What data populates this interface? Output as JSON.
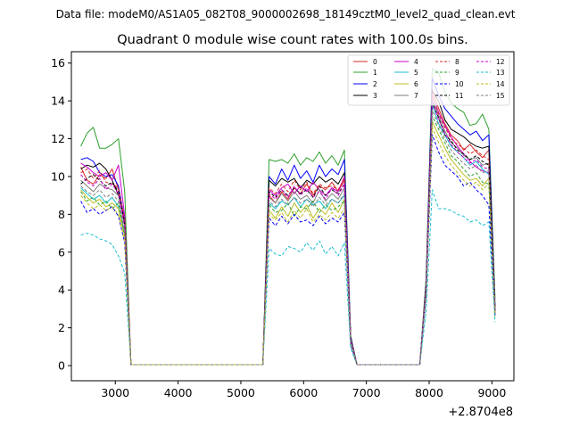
{
  "suptitle": "Data file: modeM0/AS1A05_082T08_9000002698_18149cztM0_level2_quad_clean.evt",
  "chart_data": {
    "type": "line",
    "title": "Quadrant 0 module wise count rates with 100.0s bins.",
    "xlabel": "",
    "ylabel": "",
    "x_offset_label": "+2.8704e8",
    "xlim": [
      2300,
      9350
    ],
    "ylim": [
      -0.8,
      16.6
    ],
    "xticks": [
      3000,
      4000,
      5000,
      6000,
      7000,
      8000,
      9000
    ],
    "xtick_labels": [
      "3000",
      "4000",
      "5000",
      "6000",
      "7000",
      "8000",
      "9000"
    ],
    "yticks": [
      0,
      2,
      4,
      6,
      8,
      10,
      12,
      14,
      16
    ],
    "ytick_labels": [
      "0",
      "2",
      "4",
      "6",
      "8",
      "10",
      "12",
      "14",
      "16"
    ],
    "grid": false,
    "legend_position": "top-right",
    "legend_columns": 4,
    "segments": [
      {
        "x": [
          2450,
          2550,
          2650,
          2750,
          2850,
          2950,
          3050,
          3150,
          3250
        ]
      },
      {
        "x": [
          3250,
          3350,
          3450,
          3550,
          3650,
          3750,
          3850,
          3950,
          4050,
          4150,
          4250,
          4350,
          4450,
          4550,
          4650,
          4750,
          4850,
          4950,
          5050,
          5150,
          5250,
          5350
        ]
      },
      {
        "x": [
          5350,
          5450,
          5550,
          5650,
          5750,
          5850,
          5950,
          6050,
          6150,
          6250,
          6350,
          6450,
          6550,
          6650,
          6750,
          6850
        ]
      },
      {
        "x": [
          6850,
          6950,
          7050,
          7150,
          7250,
          7350,
          7450,
          7550,
          7650,
          7750,
          7850
        ]
      },
      {
        "x": [
          7850,
          7950,
          8050,
          8150,
          8250,
          8350,
          8450,
          8550,
          8650,
          8750,
          8850,
          8950,
          9050
        ]
      }
    ],
    "series": [
      {
        "name": "0",
        "color": "#d62728",
        "dash": false,
        "seg1": [
          10.5,
          9.8,
          9.6,
          10.1,
          9.9,
          10.4,
          9.3,
          7.8,
          0.05
        ],
        "seg3": [
          0.05,
          9.0,
          8.6,
          9.2,
          8.8,
          9.4,
          9.1,
          9.6,
          9.0,
          9.5,
          9.3,
          9.7,
          9.2,
          9.8,
          1.4,
          0.05
        ],
        "seg5": [
          0.05,
          4.2,
          14.6,
          13.6,
          12.8,
          12.2,
          11.9,
          11.4,
          11.7,
          11.3,
          11.0,
          11.4,
          3.0
        ]
      },
      {
        "name": "1",
        "color": "#2ca02c",
        "dash": false,
        "seg1": [
          11.6,
          12.3,
          12.6,
          11.5,
          11.5,
          11.7,
          12.0,
          9.2,
          0.05
        ],
        "seg3": [
          0.05,
          10.9,
          10.8,
          10.9,
          10.7,
          11.2,
          10.6,
          11.0,
          10.8,
          11.3,
          10.7,
          11.1,
          10.6,
          11.4,
          1.6,
          0.05
        ],
        "seg5": [
          0.05,
          4.6,
          15.7,
          15.5,
          14.5,
          13.9,
          13.6,
          13.4,
          12.7,
          12.8,
          13.3,
          12.5,
          3.5
        ]
      },
      {
        "name": "2",
        "color": "#0000ff",
        "dash": false,
        "seg1": [
          10.9,
          11.0,
          10.8,
          10.2,
          10.0,
          10.1,
          9.5,
          7.6,
          0.05
        ],
        "seg3": [
          0.05,
          10.0,
          9.6,
          10.4,
          9.8,
          10.6,
          9.9,
          10.3,
          9.7,
          10.6,
          10.0,
          10.4,
          10.1,
          10.9,
          1.5,
          0.05
        ],
        "seg5": [
          0.05,
          4.3,
          15.2,
          14.3,
          13.6,
          13.2,
          12.8,
          12.5,
          12.2,
          12.4,
          11.9,
          12.2,
          3.1
        ]
      },
      {
        "name": "3",
        "color": "#000000",
        "dash": false,
        "seg1": [
          10.4,
          10.6,
          10.5,
          10.7,
          10.4,
          9.8,
          9.0,
          7.4,
          0.05
        ],
        "seg3": [
          0.05,
          9.8,
          9.5,
          9.9,
          9.7,
          9.9,
          9.4,
          9.8,
          9.6,
          10.0,
          9.7,
          9.9,
          9.6,
          10.2,
          1.4,
          0.05
        ],
        "seg5": [
          0.05,
          4.1,
          14.5,
          14.0,
          13.0,
          12.5,
          12.3,
          12.1,
          11.8,
          11.6,
          11.5,
          11.6,
          3.0
        ]
      },
      {
        "name": "4",
        "color": "#cc00cc",
        "dash": false,
        "seg1": [
          10.7,
          10.5,
          10.2,
          10.0,
          10.2,
          9.8,
          10.6,
          7.9,
          0.05
        ],
        "seg3": [
          0.05,
          9.3,
          9.0,
          9.4,
          9.6,
          9.1,
          9.5,
          9.2,
          9.7,
          9.3,
          9.0,
          9.4,
          9.2,
          10.0,
          1.4,
          0.05
        ],
        "seg5": [
          0.05,
          4.2,
          14.3,
          13.4,
          12.7,
          12.1,
          11.6,
          11.2,
          10.8,
          10.5,
          10.3,
          10.2,
          3.0
        ]
      },
      {
        "name": "5",
        "color": "#17becf",
        "dash": false,
        "seg1": [
          9.4,
          9.1,
          8.8,
          9.0,
          8.6,
          8.9,
          8.4,
          7.0,
          0.05
        ],
        "seg3": [
          0.05,
          8.6,
          8.3,
          8.7,
          8.5,
          8.9,
          8.4,
          8.8,
          8.5,
          8.7,
          8.3,
          8.8,
          8.6,
          9.0,
          1.3,
          0.05
        ],
        "seg5": [
          0.05,
          3.9,
          13.8,
          12.8,
          12.2,
          11.6,
          11.3,
          11.0,
          10.6,
          10.8,
          10.4,
          10.1,
          2.8
        ]
      },
      {
        "name": "6",
        "color": "#bcbd22",
        "dash": false,
        "seg1": [
          9.3,
          8.9,
          8.6,
          8.8,
          8.4,
          8.6,
          8.3,
          6.8,
          0.05
        ],
        "seg3": [
          0.05,
          8.2,
          7.8,
          8.4,
          7.9,
          8.6,
          8.1,
          8.5,
          7.8,
          8.3,
          8.0,
          8.6,
          8.1,
          8.8,
          1.2,
          0.05
        ],
        "seg5": [
          0.05,
          3.8,
          12.9,
          12.2,
          11.5,
          10.9,
          10.5,
          10.1,
          9.8,
          9.9,
          9.5,
          9.9,
          2.7
        ]
      },
      {
        "name": "7",
        "color": "#7f7f7f",
        "dash": false,
        "seg1": [
          9.8,
          9.5,
          9.2,
          9.6,
          9.4,
          9.3,
          9.0,
          7.3,
          0.05
        ],
        "seg3": [
          0.05,
          8.9,
          8.6,
          9.1,
          8.7,
          9.2,
          8.8,
          9.0,
          8.6,
          9.3,
          8.7,
          9.1,
          8.8,
          9.4,
          1.3,
          0.05
        ],
        "seg5": [
          0.05,
          4.0,
          14.1,
          13.2,
          12.4,
          11.8,
          11.5,
          11.1,
          10.9,
          11.0,
          10.6,
          10.7,
          2.9
        ]
      },
      {
        "name": "8",
        "color": "#d62728",
        "dash": true,
        "seg1": [
          10.2,
          10.4,
          9.9,
          10.3,
          9.7,
          9.6,
          9.4,
          7.7,
          0.05
        ],
        "seg3": [
          0.05,
          9.4,
          9.1,
          9.6,
          9.2,
          9.8,
          9.3,
          9.7,
          9.1,
          9.6,
          9.4,
          9.5,
          9.3,
          9.9,
          1.4,
          0.05
        ],
        "seg5": [
          0.05,
          4.2,
          14.4,
          13.3,
          12.6,
          12.0,
          11.7,
          11.5,
          11.2,
          11.4,
          11.1,
          10.9,
          2.9
        ]
      },
      {
        "name": "9",
        "color": "#2ca02c",
        "dash": true,
        "seg1": [
          9.2,
          8.7,
          8.9,
          8.5,
          8.7,
          8.3,
          8.6,
          6.9,
          0.05
        ],
        "seg3": [
          0.05,
          8.5,
          8.1,
          8.2,
          8.6,
          7.9,
          8.4,
          8.3,
          8.7,
          8.1,
          8.5,
          8.2,
          8.4,
          8.7,
          1.2,
          0.05
        ],
        "seg5": [
          0.05,
          3.9,
          13.2,
          12.5,
          11.8,
          11.1,
          10.8,
          10.4,
          10.0,
          10.2,
          9.7,
          9.6,
          2.7
        ]
      },
      {
        "name": "10",
        "color": "#0000ff",
        "dash": true,
        "seg1": [
          8.7,
          8.1,
          8.3,
          8.0,
          8.2,
          8.4,
          7.9,
          6.5,
          0.05
        ],
        "seg3": [
          0.05,
          7.8,
          7.4,
          7.9,
          7.5,
          8.0,
          7.6,
          7.7,
          7.4,
          7.9,
          7.5,
          7.8,
          7.6,
          8.1,
          1.1,
          0.05
        ],
        "seg5": [
          0.05,
          3.6,
          12.2,
          11.3,
          10.6,
          10.3,
          10.0,
          9.5,
          9.7,
          9.3,
          9.0,
          8.5,
          2.6
        ]
      },
      {
        "name": "11",
        "color": "#000000",
        "dash": true,
        "seg1": [
          9.6,
          9.9,
          10.1,
          9.8,
          9.5,
          9.7,
          9.2,
          7.5,
          0.05
        ],
        "seg3": [
          0.05,
          9.2,
          8.9,
          9.3,
          9.0,
          9.4,
          9.1,
          9.3,
          8.9,
          9.5,
          9.0,
          9.3,
          9.1,
          9.6,
          1.3,
          0.05
        ],
        "seg5": [
          0.05,
          4.1,
          13.9,
          13.1,
          12.2,
          11.9,
          11.4,
          11.2,
          10.9,
          11.1,
          10.8,
          10.6,
          2.9
        ]
      },
      {
        "name": "12",
        "color": "#cc00cc",
        "dash": true,
        "seg1": [
          10.1,
          9.7,
          9.5,
          9.9,
          9.3,
          9.6,
          9.1,
          7.4,
          0.05
        ],
        "seg3": [
          0.05,
          9.1,
          8.8,
          9.3,
          8.9,
          9.5,
          9.0,
          9.4,
          8.9,
          9.2,
          8.8,
          9.4,
          9.0,
          9.6,
          1.3,
          0.05
        ],
        "seg5": [
          0.05,
          4.0,
          14.0,
          13.0,
          12.3,
          11.7,
          11.3,
          11.0,
          10.7,
          10.9,
          10.5,
          10.4,
          2.8
        ]
      },
      {
        "name": "13",
        "color": "#17becf",
        "dash": true,
        "seg1": [
          6.9,
          7.0,
          6.9,
          6.7,
          6.6,
          6.4,
          5.8,
          4.9,
          0.05
        ],
        "seg3": [
          0.05,
          6.2,
          5.9,
          5.8,
          6.3,
          6.2,
          6.0,
          6.5,
          6.1,
          6.6,
          5.9,
          6.3,
          5.8,
          6.5,
          0.9,
          0.05
        ],
        "seg5": [
          0.05,
          2.8,
          9.3,
          8.3,
          8.3,
          8.2,
          8.0,
          7.9,
          7.6,
          7.7,
          7.4,
          7.6,
          2.3
        ]
      },
      {
        "name": "14",
        "color": "#bcbd22",
        "dash": true,
        "seg1": [
          9.0,
          8.6,
          8.3,
          8.5,
          8.2,
          8.4,
          8.0,
          6.6,
          0.05
        ],
        "seg3": [
          0.05,
          8.0,
          7.7,
          8.1,
          7.6,
          8.2,
          7.8,
          8.3,
          7.6,
          8.0,
          7.7,
          8.1,
          7.8,
          8.3,
          1.2,
          0.05
        ],
        "seg5": [
          0.05,
          3.7,
          12.6,
          11.8,
          11.1,
          10.6,
          10.2,
          9.8,
          9.5,
          9.7,
          9.3,
          9.6,
          2.6
        ]
      },
      {
        "name": "15",
        "color": "#7f7f7f",
        "dash": true,
        "seg1": [
          9.5,
          9.2,
          9.0,
          9.3,
          8.9,
          9.1,
          8.7,
          7.1,
          0.05
        ],
        "seg3": [
          0.05,
          8.7,
          8.4,
          8.8,
          8.5,
          8.9,
          8.6,
          8.8,
          8.4,
          8.9,
          8.5,
          8.8,
          8.6,
          9.1,
          1.3,
          0.05
        ],
        "seg5": [
          0.05,
          3.9,
          13.5,
          12.7,
          12.0,
          11.4,
          11.0,
          10.7,
          10.4,
          10.6,
          10.2,
          10.3,
          2.8
        ]
      }
    ]
  }
}
